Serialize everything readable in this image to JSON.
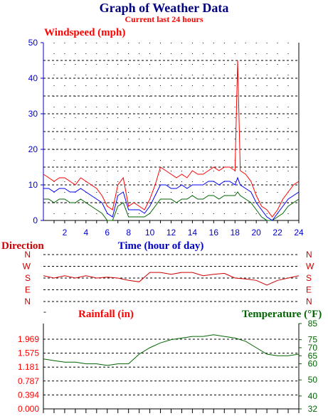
{
  "header": {
    "title": "Graph of Weather Data",
    "subtitle": "Current last 24 hours"
  },
  "colors": {
    "title": "#000080",
    "wind_max": "#ff0000",
    "wind_avg": "#0000ff",
    "wind_min": "#006400",
    "direction": "#cc0000",
    "rain_axis": "#ff0000",
    "temperature": "#006400",
    "axis_blue": "#0000cc"
  },
  "chart_data": [
    {
      "type": "line",
      "title": "Windspeed (mph)",
      "xlabel": "Time (hour of day)",
      "ylabel": "",
      "xlim": [
        0,
        24
      ],
      "ylim": [
        0,
        50
      ],
      "x_ticks": [
        2,
        4,
        6,
        8,
        10,
        12,
        14,
        16,
        18,
        20,
        22,
        24
      ],
      "y_ticks": [
        0,
        10,
        20,
        30,
        40,
        50
      ],
      "grid": true,
      "x": [
        0,
        0.5,
        1,
        1.5,
        2,
        2.5,
        3,
        3.5,
        4,
        4.5,
        5,
        5.5,
        6,
        6.5,
        7,
        7.5,
        8,
        8.5,
        9,
        9.5,
        10,
        10.5,
        11,
        11.5,
        12,
        12.5,
        13,
        13.5,
        14,
        14.5,
        15,
        15.5,
        16,
        16.5,
        17,
        17.5,
        18,
        18.25,
        18.5,
        19,
        19.5,
        20,
        20.5,
        21,
        21.5,
        22,
        22.5,
        23,
        23.5,
        24
      ],
      "series": [
        {
          "values": [
            13,
            12,
            11,
            12,
            12,
            11,
            10,
            12,
            11,
            10,
            9,
            7,
            4,
            3,
            10,
            12,
            4,
            5,
            4,
            3,
            6,
            10,
            15,
            14,
            13,
            12,
            13,
            12,
            14,
            13,
            13,
            14,
            15,
            14,
            15,
            15,
            14,
            45,
            14,
            13,
            11,
            7,
            4,
            3,
            1,
            3,
            6,
            8,
            10,
            11
          ]
        },
        {
          "values": [
            9,
            9,
            8,
            9,
            9,
            8,
            8,
            9,
            8,
            7,
            6,
            5,
            2,
            1,
            7,
            8,
            3,
            3,
            3,
            2,
            4,
            7,
            10,
            10,
            9,
            9,
            10,
            9,
            10,
            10,
            10,
            11,
            11,
            10,
            11,
            11,
            10,
            12,
            10,
            9,
            8,
            5,
            3,
            1,
            0,
            2,
            4,
            6,
            7,
            8
          ]
        },
        {
          "values": [
            6,
            6,
            5,
            6,
            6,
            5,
            5,
            6,
            5,
            4,
            3,
            2,
            0,
            0,
            4,
            5,
            1,
            1,
            1,
            1,
            2,
            4,
            6,
            6,
            6,
            5,
            6,
            6,
            7,
            6,
            6,
            7,
            7,
            6,
            7,
            7,
            7,
            8,
            7,
            6,
            5,
            3,
            1,
            0,
            0,
            1,
            2,
            4,
            5,
            6
          ]
        }
      ]
    },
    {
      "type": "line",
      "title": "Direction",
      "y_ticks": [
        "N",
        "W",
        "S",
        "E",
        "N"
      ],
      "x": [
        0,
        1,
        2,
        3,
        4,
        5,
        6,
        7,
        8,
        9,
        10,
        11,
        12,
        13,
        14,
        15,
        16,
        17,
        18,
        19,
        20,
        21,
        22,
        23,
        24
      ],
      "series": [
        {
          "values": [
            0.55,
            0.5,
            0.55,
            0.5,
            0.55,
            0.5,
            0.52,
            0.5,
            0.45,
            0.42,
            0.62,
            0.62,
            0.58,
            0.62,
            0.62,
            0.55,
            0.58,
            0.6,
            0.5,
            0.48,
            0.45,
            0.35,
            0.45,
            0.5,
            0.55
          ]
        }
      ]
    },
    {
      "type": "line",
      "title": "Rainfall (in)",
      "y_ticks_left": [
        "0.000",
        "0.394",
        "0.787",
        "1.181",
        "1.575",
        "1.969"
      ],
      "right_axis_title": "Temperature",
      "right_axis_unit": "(°F)",
      "y_ticks_right": [
        32,
        40,
        50,
        60,
        65,
        70,
        75,
        85
      ],
      "ylim_right": [
        32,
        85
      ],
      "x": [
        0,
        1,
        2,
        3,
        4,
        5,
        6,
        7,
        8,
        9,
        10,
        11,
        12,
        13,
        14,
        15,
        16,
        17,
        18,
        19,
        20,
        21,
        22,
        23,
        24
      ],
      "series": [
        {
          "name": "Temperature",
          "values": [
            63,
            62,
            61,
            61,
            60,
            60,
            59,
            60,
            60,
            66,
            70,
            73,
            75,
            76,
            77,
            77,
            78,
            77,
            76,
            74,
            70,
            66,
            65,
            65,
            66
          ]
        }
      ]
    }
  ]
}
